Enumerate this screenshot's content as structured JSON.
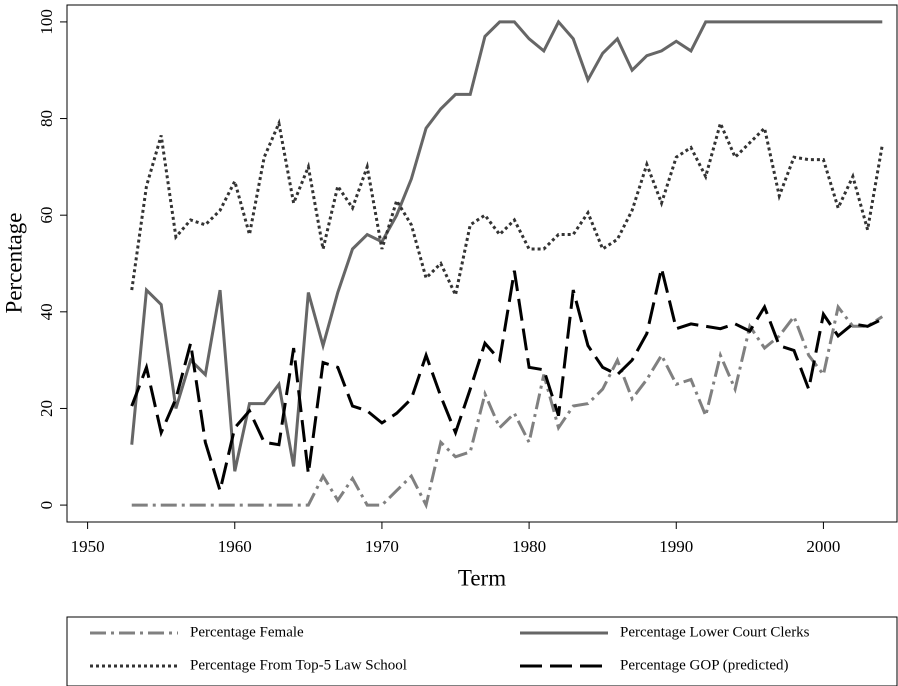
{
  "chart_data": {
    "type": "line",
    "x_label": "Term",
    "y_label": "Percentage",
    "x": [
      1953,
      1954,
      1955,
      1956,
      1957,
      1958,
      1959,
      1960,
      1961,
      1962,
      1963,
      1964,
      1965,
      1966,
      1967,
      1968,
      1969,
      1970,
      1971,
      1972,
      1973,
      1974,
      1975,
      1976,
      1977,
      1978,
      1979,
      1980,
      1981,
      1982,
      1983,
      1984,
      1985,
      1986,
      1987,
      1988,
      1989,
      1990,
      1991,
      1992,
      1993,
      1994,
      1995,
      1996,
      1997,
      1998,
      1999,
      2000,
      2001,
      2002,
      2003,
      2004
    ],
    "series": [
      {
        "name": "Percentage Female",
        "color": "#808080",
        "dash": "dash-dot",
        "values": [
          0,
          0,
          0,
          0,
          0,
          0,
          0,
          0,
          0,
          0,
          0,
          0,
          0,
          6,
          1,
          5.5,
          0,
          0,
          3,
          6,
          0,
          13,
          10,
          11,
          23,
          16,
          19,
          13,
          27,
          16,
          20.5,
          21,
          24,
          30,
          22,
          26,
          31,
          25,
          26,
          18.5,
          31,
          24,
          37,
          32.5,
          35,
          39,
          31,
          27,
          41,
          37,
          37,
          39
        ]
      },
      {
        "name": "Percentage Lower Court Clerks",
        "color": "#666666",
        "dash": "solid",
        "values": [
          12.5,
          44.5,
          41.5,
          20,
          30,
          27,
          44.5,
          7,
          21,
          21,
          25,
          8,
          44,
          33,
          44,
          53,
          56,
          54.5,
          60,
          67.5,
          78,
          82,
          85,
          85,
          97,
          100,
          100,
          96.5,
          94,
          100,
          96.5,
          88,
          93.5,
          96.5,
          90,
          93,
          94,
          96,
          94,
          100,
          100,
          100,
          100,
          100,
          100,
          100,
          100,
          100,
          100,
          100,
          100,
          100
        ]
      },
      {
        "name": "Percentage From Top-5 Law School",
        "color": "#333333",
        "dash": "dot",
        "values": [
          44.5,
          66,
          76.5,
          55.5,
          59,
          58,
          61,
          67,
          56,
          72,
          79,
          62.5,
          70,
          53,
          66,
          61.5,
          70,
          53,
          63,
          58,
          47,
          50,
          43.5,
          58,
          60,
          56,
          59,
          53,
          53,
          56,
          56,
          60.5,
          53,
          55,
          61,
          70.5,
          62.5,
          72,
          74,
          68,
          79,
          72,
          75,
          78,
          64,
          72,
          71.5,
          71.5,
          61.5,
          68,
          57,
          74.5
        ]
      },
      {
        "name": "Percentage GOP (predicted)",
        "color": "#000000",
        "dash": "long-dash",
        "values": [
          20.5,
          28.5,
          15,
          22,
          33.5,
          13,
          3,
          16,
          19.5,
          13,
          12.5,
          32.5,
          6.5,
          29.5,
          28.5,
          20.5,
          19.5,
          17,
          19,
          22,
          31,
          22.5,
          15,
          24,
          33.5,
          30,
          48.5,
          28.5,
          28,
          18.5,
          44.5,
          33,
          28.5,
          27,
          30,
          35.5,
          49,
          36.5,
          37.5,
          37,
          36.5,
          37.5,
          36,
          41,
          33,
          32,
          24,
          39.5,
          35,
          37.5,
          37,
          38.5
        ]
      }
    ],
    "xlim": [
      1948.6,
      2005
    ],
    "ylim": [
      -3.5,
      103.5
    ],
    "xticks": [
      1950,
      1960,
      1970,
      1980,
      1990,
      2000
    ],
    "yticks": [
      0,
      20,
      40,
      60,
      80,
      100
    ],
    "grid": false,
    "legend": "bottom"
  }
}
